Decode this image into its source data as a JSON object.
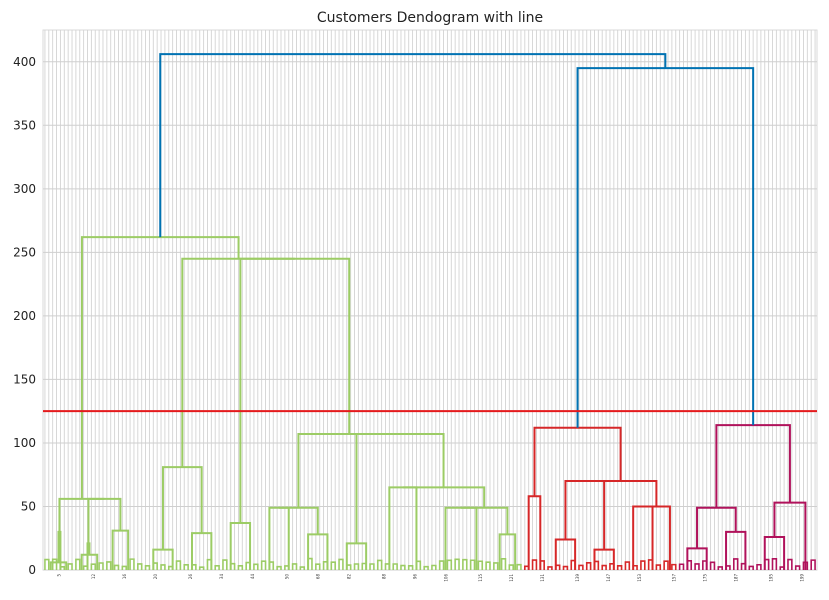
{
  "chart_data": {
    "type": "dendrogram",
    "title": "Customers Dendogram with line",
    "xlabel": "",
    "ylabel": "",
    "ylim": [
      0,
      425
    ],
    "yticks": [
      0,
      50,
      100,
      150,
      200,
      250,
      300,
      350,
      400
    ],
    "grid": true,
    "leaf_count": 200,
    "leaf_labels_visible": [
      "5",
      "12",
      "16",
      "20",
      "26",
      "34",
      "44",
      "50",
      "68",
      "82",
      "88",
      "96",
      "106",
      "115",
      "121",
      "131",
      "139",
      "147",
      "153",
      "157",
      "175",
      "187",
      "195",
      "199"
    ],
    "cut_line": {
      "y": 125,
      "color": "#e41a1c"
    },
    "colors": {
      "above_cut": "#0072b2",
      "cluster_green": "#9ccc65",
      "cluster_red": "#d62728",
      "cluster_magenta": "#b0125b"
    },
    "clusters": [
      {
        "color": "cluster_green",
        "leaf_range": [
          0,
          123
        ]
      },
      {
        "color": "cluster_red",
        "leaf_range": [
          124,
          163
        ]
      },
      {
        "color": "cluster_magenta",
        "leaf_range": [
          164,
          199
        ]
      }
    ],
    "links": [
      {
        "id": "G1",
        "color": "cluster_green",
        "left": [
          0,
          3
        ],
        "right": [
          4,
          7
        ],
        "height": 6
      },
      {
        "id": "G2",
        "color": "cluster_green",
        "left": [
          8,
          11
        ],
        "right": [
          12,
          15
        ],
        "height": 12
      },
      {
        "id": "G3",
        "color": "cluster_green",
        "left": [
          2,
          6
        ],
        "right": "G1",
        "height": 30
      },
      {
        "id": "G4",
        "color": "cluster_green",
        "left": [
          9,
          13
        ],
        "right": "G2",
        "height": 21
      },
      {
        "id": "G5",
        "color": "cluster_green",
        "left": [
          16,
          19
        ],
        "right": [
          20,
          23
        ],
        "height": 31
      },
      {
        "id": "G6",
        "color": "cluster_green",
        "left": "G4",
        "right": "G5",
        "height": 56
      },
      {
        "id": "G7",
        "color": "cluster_green",
        "left": "G3",
        "right": "G6",
        "height": 56
      },
      {
        "id": "G8",
        "color": "cluster_green",
        "left": [
          26,
          30
        ],
        "right": [
          31,
          35
        ],
        "height": 16
      },
      {
        "id": "G9",
        "color": "cluster_green",
        "left": [
          36,
          40
        ],
        "right": [
          41,
          45
        ],
        "height": 29
      },
      {
        "id": "G10",
        "color": "cluster_green",
        "left": "G8",
        "right": "G9",
        "height": 81
      },
      {
        "id": "G11",
        "color": "cluster_green",
        "left": [
          46,
          50
        ],
        "right": [
          51,
          55
        ],
        "height": 37
      },
      {
        "id": "G12",
        "color": "cluster_green",
        "left": [
          56,
          60
        ],
        "right": [
          61,
          65
        ],
        "height": 49
      },
      {
        "id": "G13",
        "color": "cluster_green",
        "left": [
          66,
          70
        ],
        "right": [
          71,
          75
        ],
        "height": 28
      },
      {
        "id": "G14",
        "color": "cluster_green",
        "left": "G12",
        "right": "G13",
        "height": 49
      },
      {
        "id": "G15",
        "color": "cluster_green",
        "left": [
          76,
          80
        ],
        "right": [
          81,
          85
        ],
        "height": 21
      },
      {
        "id": "G16",
        "color": "cluster_green",
        "left": [
          86,
          92
        ],
        "right": [
          93,
          99
        ],
        "height": 65
      },
      {
        "id": "G17",
        "color": "cluster_green",
        "left": [
          100,
          107
        ],
        "right": [
          108,
          115
        ],
        "height": 49
      },
      {
        "id": "G18",
        "color": "cluster_green",
        "left": [
          116,
          119
        ],
        "right": [
          120,
          123
        ],
        "height": 28
      },
      {
        "id": "G19",
        "color": "cluster_green",
        "left": "G17",
        "right": "G18",
        "height": 49
      },
      {
        "id": "G20",
        "color": "cluster_green",
        "left": "G16",
        "right": "G19",
        "height": 65
      },
      {
        "id": "G21",
        "color": "cluster_green",
        "left": "G15",
        "right": "G20",
        "height": 107
      },
      {
        "id": "G22",
        "color": "cluster_green",
        "left": "G14",
        "right": "G21",
        "height": 107
      },
      {
        "id": "G23",
        "color": "cluster_green",
        "left": "G11",
        "right": "G22",
        "height": 245
      },
      {
        "id": "G24",
        "color": "cluster_green",
        "left": "G10",
        "right": "G23",
        "height": 245
      },
      {
        "id": "G25",
        "color": "cluster_green",
        "left": "G7",
        "right": "G24",
        "height": 262
      },
      {
        "id": "R1",
        "color": "cluster_red",
        "left": [
          124,
          126
        ],
        "right": [
          127,
          129
        ],
        "height": 58
      },
      {
        "id": "R2",
        "color": "cluster_red",
        "left": [
          130,
          134
        ],
        "right": [
          135,
          139
        ],
        "height": 24
      },
      {
        "id": "R3",
        "color": "cluster_red",
        "left": [
          140,
          144
        ],
        "right": [
          145,
          149
        ],
        "height": 16
      },
      {
        "id": "R4",
        "color": "cluster_red",
        "left": "R2",
        "right": "R3",
        "height": 70
      },
      {
        "id": "R5",
        "color": "cluster_red",
        "left": [
          150,
          154
        ],
        "right": [
          155,
          159
        ],
        "height": 50
      },
      {
        "id": "R6",
        "color": "cluster_red",
        "left": "R5",
        "right": [
          160,
          163
        ],
        "height": 50
      },
      {
        "id": "R7",
        "color": "cluster_red",
        "left": "R4",
        "right": "R6",
        "height": 70
      },
      {
        "id": "R8",
        "color": "cluster_red",
        "left": "R1",
        "right": "R7",
        "height": 112
      },
      {
        "id": "M1",
        "color": "cluster_magenta",
        "left": [
          164,
          168
        ],
        "right": [
          169,
          173
        ],
        "height": 17
      },
      {
        "id": "M2",
        "color": "cluster_magenta",
        "left": [
          174,
          178
        ],
        "right": [
          179,
          183
        ],
        "height": 30
      },
      {
        "id": "M3",
        "color": "cluster_magenta",
        "left": "M1",
        "right": "M2",
        "height": 49
      },
      {
        "id": "M4",
        "color": "cluster_magenta",
        "left": [
          184,
          188
        ],
        "right": [
          189,
          193
        ],
        "height": 26
      },
      {
        "id": "M5",
        "color": "cluster_magenta",
        "left": "M4",
        "right": [
          194,
          199
        ],
        "height": 53
      },
      {
        "id": "M6",
        "color": "cluster_magenta",
        "left": "M3",
        "right": "M5",
        "height": 114
      },
      {
        "id": "B1",
        "color": "above_cut",
        "left": "R8",
        "right": "M6",
        "height": 395
      },
      {
        "id": "B2",
        "color": "above_cut",
        "left": "G25",
        "right": "B1",
        "height": 406
      }
    ]
  }
}
